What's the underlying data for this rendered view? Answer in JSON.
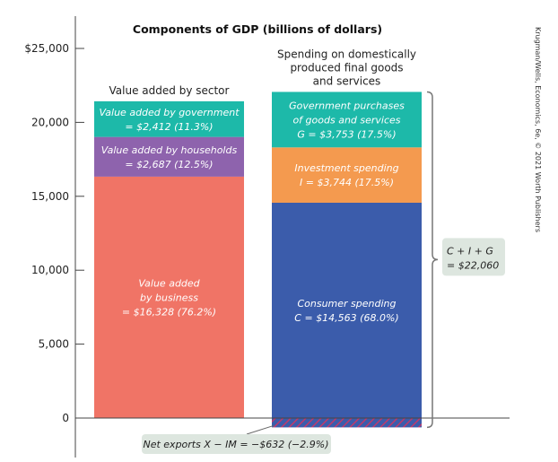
{
  "chart_data": {
    "type": "bar",
    "title": "Components of GDP (billions of dollars)",
    "ylim": [
      -800,
      27000
    ],
    "yticks": [
      0,
      5000,
      10000,
      15000,
      20000,
      25000
    ],
    "ytick_labels": [
      "0",
      "5,000",
      "10,000",
      "15,000",
      "20,000",
      "$25,000"
    ],
    "grid": false,
    "categories": [
      "Value added by sector",
      "Spending on domestically produced final goods and services"
    ],
    "group_label_lines": [
      [
        "Value added by sector"
      ],
      [
        "Spending on domestically",
        "produced final goods",
        "and services"
      ]
    ],
    "stacks": [
      {
        "category": "Value added by sector",
        "segments": [
          {
            "key": "business",
            "value": 16328,
            "color": "#f07466",
            "label_lines": [
              "Value added",
              "by business",
              "= $16,328 (76.2%)"
            ]
          },
          {
            "key": "households",
            "value": 2687,
            "color": "#8e63ad",
            "label_lines": [
              "Value added by households",
              "= $2,687 (12.5%)"
            ]
          },
          {
            "key": "government",
            "value": 2412,
            "color": "#1db9a9",
            "label_lines": [
              "Value added by government",
              "= $2,412 (11.3%)"
            ]
          }
        ]
      },
      {
        "category": "Spending on domestically produced final goods and services",
        "segments": [
          {
            "key": "consumer",
            "value": 14563,
            "color": "#3b5cab",
            "label_lines": [
              "Consumer spending",
              "C = $14,563 (68.0%)"
            ]
          },
          {
            "key": "investment",
            "value": 3744,
            "color": "#f49a4f",
            "label_lines": [
              "Investment spending",
              "I = $3,744 (17.5%)"
            ]
          },
          {
            "key": "government_purchases",
            "value": 3753,
            "color": "#1db9a9",
            "label_lines": [
              "Government purchases",
              "of goods and services",
              "G = $3,753 (17.5%)"
            ]
          }
        ],
        "negative_segment": {
          "key": "net_exports",
          "value": -632,
          "color": "#3b5cab",
          "hatch_color": "#c0396b",
          "label": "Net exports X − IM = −$632 (−2.9%)"
        }
      }
    ],
    "bracket_annotation": {
      "label_lines": [
        "C + I + G",
        "= $22,060"
      ]
    },
    "annotation_box_color": "#dde6df",
    "credit": "Krugman/Wells, Economics, 6e, © 2021 Worth Publishers"
  }
}
